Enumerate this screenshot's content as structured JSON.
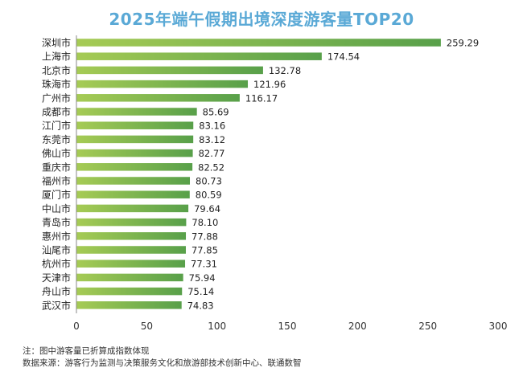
{
  "chart_data": {
    "type": "bar",
    "orientation": "horizontal",
    "title": "2025年端午假期出境深度游客量TOP20",
    "categories": [
      "深圳市",
      "上海市",
      "北京市",
      "珠海市",
      "广州市",
      "成都市",
      "江门市",
      "东莞市",
      "佛山市",
      "重庆市",
      "福州市",
      "厦门市",
      "中山市",
      "青岛市",
      "惠州市",
      "汕尾市",
      "杭州市",
      "天津市",
      "舟山市",
      "武汉市"
    ],
    "values": [
      259.29,
      174.54,
      132.78,
      121.96,
      116.17,
      85.69,
      83.16,
      83.12,
      82.77,
      82.52,
      80.73,
      80.59,
      79.64,
      78.1,
      77.88,
      77.85,
      77.31,
      75.94,
      75.14,
      74.83
    ],
    "value_labels": [
      "259.29",
      "174.54",
      "132.78",
      "121.96",
      "116.17",
      "85.69",
      "83.16",
      "83.12",
      "82.77",
      "82.52",
      "80.73",
      "80.59",
      "79.64",
      "78.10",
      "77.88",
      "77.85",
      "77.31",
      "75.94",
      "75.14",
      "74.83"
    ],
    "xlim": [
      0,
      300
    ],
    "xticks": [
      "0",
      "50",
      "100",
      "150",
      "200",
      "250",
      "300"
    ],
    "xlabel": "",
    "ylabel": "",
    "grid": false,
    "bar_gradient": [
      "#a6cb55",
      "#58a04a"
    ]
  },
  "notes": {
    "note": "注：图中游客量已折算成指数体现",
    "source": "数据来源：游客行为监测与决策服务文化和旅游部技术创新中心、联通数智"
  }
}
